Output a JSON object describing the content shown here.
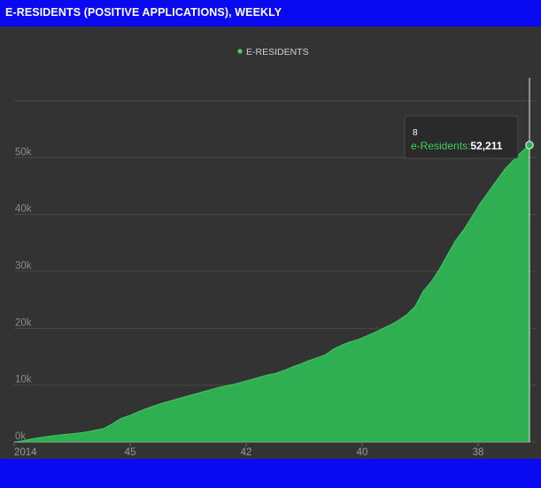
{
  "header": {
    "title": "E-RESIDENTS (POSITIVE APPLICATIONS), WEEKLY"
  },
  "colors": {
    "background": "#333333",
    "area_fill": "#2fae52",
    "header_bar": "#0a0af2",
    "legend_marker": "#43d464"
  },
  "chart_data": {
    "type": "area",
    "title": "E-RESIDENTS (POSITIVE APPLICATIONS), WEEKLY",
    "xlabel": "",
    "ylabel": "",
    "ylim": [
      0,
      60000
    ],
    "yticks": [
      0,
      10000,
      20000,
      30000,
      40000,
      50000
    ],
    "ytick_labels": [
      "0k",
      "10k",
      "20k",
      "30k",
      "40k",
      "50k"
    ],
    "xtick_labels": [
      "2014",
      "45",
      "42",
      "40",
      "38"
    ],
    "grid": true,
    "legend": {
      "placement": "top-center",
      "entries": [
        "E-RESIDENTS"
      ]
    },
    "series": [
      {
        "name": "e-Residents",
        "values": [
          0,
          200,
          500,
          750,
          950,
          1150,
          1300,
          1450,
          1600,
          1800,
          2100,
          2400,
          3200,
          4100,
          4600,
          5200,
          5800,
          6300,
          6800,
          7200,
          7600,
          8000,
          8400,
          8800,
          9200,
          9600,
          9900,
          10200,
          10600,
          11000,
          11400,
          11800,
          12100,
          12600,
          13200,
          13700,
          14300,
          14800,
          15300,
          16300,
          17000,
          17600,
          18000,
          18600,
          19200,
          19900,
          20600,
          21400,
          22400,
          23800,
          26500,
          28200,
          30400,
          33000,
          35500,
          37400,
          39700,
          42000,
          44000,
          46000,
          48000,
          49500,
          51000,
          52211
        ],
        "last_week_label": "8"
      }
    ],
    "tooltip": {
      "week": "8",
      "series": "e-Residents",
      "separator": ":",
      "value": "52,211"
    }
  }
}
